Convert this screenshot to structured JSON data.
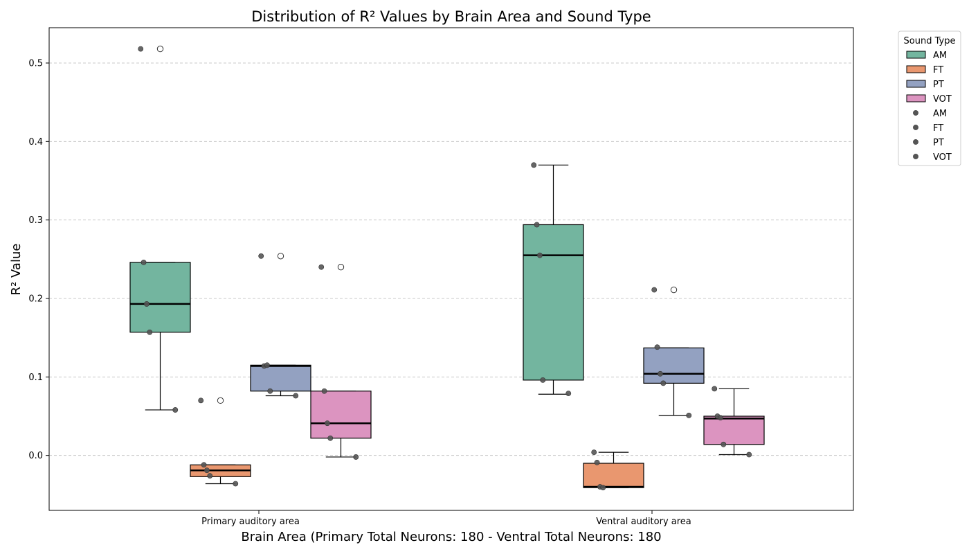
{
  "chart_data": {
    "type": "boxplot",
    "title": "Distribution of R² Values by Brain Area and Sound Type",
    "xlabel": "Brain Area (Primary Total Neurons: 180 - Ventral Total Neurons: 180",
    "ylabel": "R² Value",
    "categories": [
      "Primary auditory area",
      "Ventral auditory area"
    ],
    "ylim": [
      -0.07,
      0.545
    ],
    "yticks": [
      0.0,
      0.1,
      0.2,
      0.3,
      0.4,
      0.5
    ],
    "grid": "y-dashed",
    "legend": {
      "title": "Sound Type",
      "placement": "outside-top-right",
      "box_entries": [
        "AM",
        "FT",
        "PT",
        "VOT"
      ],
      "point_entries": [
        "AM",
        "FT",
        "PT",
        "VOT"
      ]
    },
    "series": [
      {
        "name": "AM",
        "color": "#73b59f",
        "boxes": [
          {
            "q1": 0.157,
            "median": 0.193,
            "q3": 0.246,
            "whisker_low": 0.058,
            "whisker_high": 0.246,
            "outliers": [
              0.518
            ],
            "points": [
              0.518,
              0.246,
              0.193,
              0.157,
              0.058
            ]
          },
          {
            "q1": 0.096,
            "median": 0.255,
            "q3": 0.294,
            "whisker_low": 0.078,
            "whisker_high": 0.37,
            "outliers": [],
            "points": [
              0.37,
              0.294,
              0.255,
              0.096,
              0.079
            ]
          }
        ]
      },
      {
        "name": "FT",
        "color": "#e9976f",
        "boxes": [
          {
            "q1": -0.027,
            "median": -0.019,
            "q3": -0.012,
            "whisker_low": -0.036,
            "whisker_high": -0.012,
            "outliers": [
              0.07
            ],
            "points": [
              0.07,
              -0.012,
              -0.019,
              -0.026,
              -0.036
            ]
          },
          {
            "q1": -0.041,
            "median": -0.04,
            "q3": -0.01,
            "whisker_low": -0.041,
            "whisker_high": 0.004,
            "outliers": [],
            "points": [
              0.004,
              -0.009,
              -0.04,
              -0.041
            ]
          }
        ]
      },
      {
        "name": "PT",
        "color": "#93a1c1",
        "boxes": [
          {
            "q1": 0.082,
            "median": 0.114,
            "q3": 0.115,
            "whisker_low": 0.076,
            "whisker_high": 0.115,
            "outliers": [
              0.254
            ],
            "points": [
              0.254,
              0.114,
              0.115,
              0.082,
              0.076
            ]
          },
          {
            "q1": 0.092,
            "median": 0.104,
            "q3": 0.137,
            "whisker_low": 0.051,
            "whisker_high": 0.137,
            "outliers": [
              0.211
            ],
            "points": [
              0.211,
              0.138,
              0.104,
              0.092,
              0.051
            ]
          }
        ]
      },
      {
        "name": "VOT",
        "color": "#dc94c0",
        "boxes": [
          {
            "q1": 0.022,
            "median": 0.041,
            "q3": 0.082,
            "whisker_low": -0.002,
            "whisker_high": 0.082,
            "outliers": [
              0.24
            ],
            "points": [
              0.24,
              0.082,
              0.041,
              0.022,
              -0.002
            ]
          },
          {
            "q1": 0.014,
            "median": 0.047,
            "q3": 0.05,
            "whisker_low": 0.001,
            "whisker_high": 0.085,
            "outliers": [],
            "points": [
              0.085,
              0.05,
              0.048,
              0.014,
              0.001
            ]
          }
        ]
      }
    ]
  },
  "colors": {
    "point": "#555555",
    "grid": "#c8c8c8",
    "axis": "#000000"
  }
}
